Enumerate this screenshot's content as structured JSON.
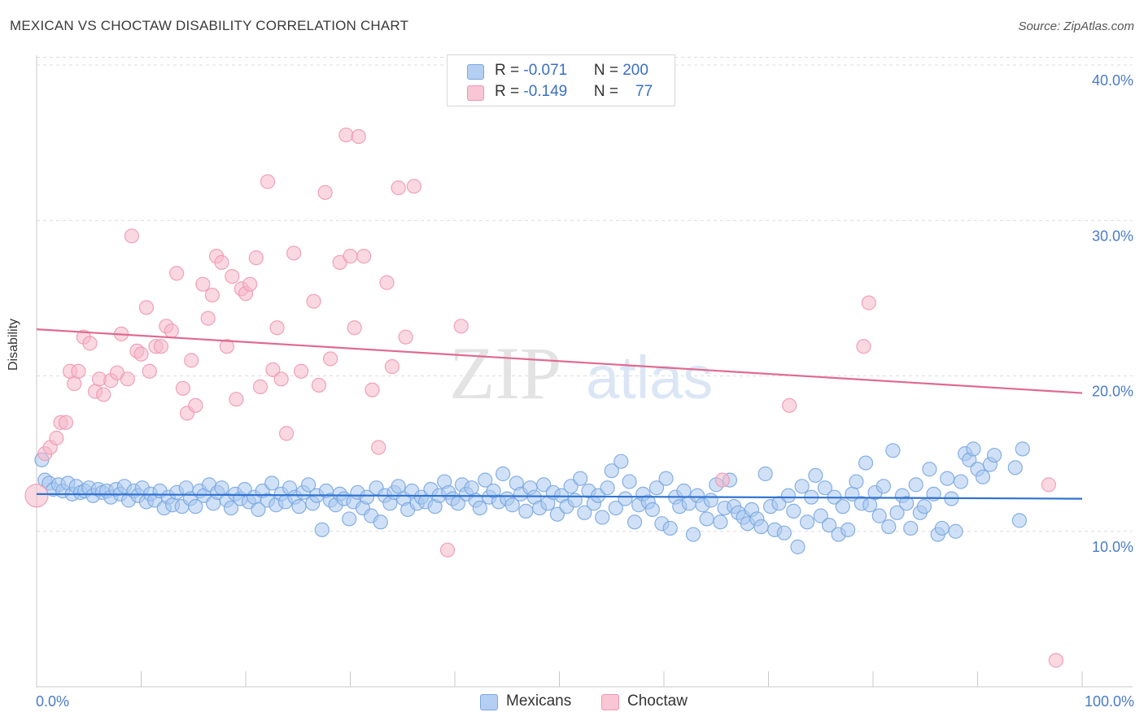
{
  "title": "MEXICAN VS CHOCTAW DISABILITY CORRELATION CHART",
  "source": "Source: ZipAtlas.com",
  "watermark": {
    "zip": "ZIP",
    "atlas": "atlas"
  },
  "colors": {
    "mexicans_fill": "#a9c8f0",
    "mexicans_stroke": "#7aa7e0",
    "mexicans_line": "#2f72d2",
    "choctaw_fill": "#f6b8cb",
    "choctaw_stroke": "#ee98b2",
    "choctaw_line": "#e0698f",
    "axis_label": "#4a7bc8"
  },
  "legend": {
    "mexicans": {
      "r_label": "R = ",
      "r_value": "-0.071",
      "n_label": "N = ",
      "n_value": "200"
    },
    "choctaw": {
      "r_label": "R = ",
      "r_value": "-0.149",
      "n_label": "N = ",
      "n_value": "77"
    }
  },
  "chart_data": {
    "type": "scatter",
    "title": "MEXICAN VS CHOCTAW DISABILITY CORRELATION CHART",
    "xlabel": "",
    "ylabel": "Disability",
    "xlim": [
      0,
      100
    ],
    "ylim": [
      0,
      40
    ],
    "x_tick_labels": [
      "0.0%",
      "100.0%"
    ],
    "y_ticks": [
      10,
      20,
      30,
      40
    ],
    "y_tick_labels": [
      "10.0%",
      "20.0%",
      "30.0%",
      "40.0%"
    ],
    "grid": true,
    "legend_position": "top-center",
    "series": [
      {
        "name": "Mexicans",
        "r": -0.071,
        "n": 200,
        "trend": [
          [
            0,
            12.4
          ],
          [
            100,
            12.1
          ]
        ],
        "points": [
          [
            0.5,
            14.6
          ],
          [
            0.8,
            13.3
          ],
          [
            1.2,
            13.1
          ],
          [
            1.6,
            12.7
          ],
          [
            2.1,
            13.0
          ],
          [
            2.5,
            12.6
          ],
          [
            3.0,
            13.1
          ],
          [
            3.4,
            12.4
          ],
          [
            3.8,
            12.9
          ],
          [
            4.2,
            12.5
          ],
          [
            4.6,
            12.6
          ],
          [
            5.0,
            12.8
          ],
          [
            5.4,
            12.3
          ],
          [
            5.9,
            12.7
          ],
          [
            6.3,
            12.5
          ],
          [
            6.7,
            12.6
          ],
          [
            7.1,
            12.2
          ],
          [
            7.6,
            12.7
          ],
          [
            8.0,
            12.4
          ],
          [
            8.4,
            12.9
          ],
          [
            8.8,
            12.0
          ],
          [
            9.3,
            12.6
          ],
          [
            9.7,
            12.3
          ],
          [
            10.1,
            12.8
          ],
          [
            10.5,
            11.9
          ],
          [
            10.9,
            12.4
          ],
          [
            11.3,
            12.0
          ],
          [
            11.8,
            12.6
          ],
          [
            12.2,
            11.5
          ],
          [
            12.6,
            12.2
          ],
          [
            13.0,
            11.7
          ],
          [
            13.4,
            12.5
          ],
          [
            13.9,
            11.6
          ],
          [
            14.3,
            12.8
          ],
          [
            14.7,
            12.1
          ],
          [
            15.2,
            11.6
          ],
          [
            15.6,
            12.6
          ],
          [
            16.0,
            12.3
          ],
          [
            16.5,
            13.0
          ],
          [
            16.9,
            11.8
          ],
          [
            17.3,
            12.5
          ],
          [
            17.7,
            12.8
          ],
          [
            18.2,
            12.0
          ],
          [
            18.6,
            11.5
          ],
          [
            19.0,
            12.4
          ],
          [
            19.5,
            12.1
          ],
          [
            19.9,
            12.7
          ],
          [
            20.3,
            11.9
          ],
          [
            20.8,
            12.2
          ],
          [
            21.2,
            11.4
          ],
          [
            21.6,
            12.6
          ],
          [
            22.1,
            12.0
          ],
          [
            22.5,
            13.1
          ],
          [
            22.9,
            11.7
          ],
          [
            23.4,
            12.4
          ],
          [
            23.8,
            11.9
          ],
          [
            24.2,
            12.8
          ],
          [
            24.7,
            12.2
          ],
          [
            25.1,
            11.6
          ],
          [
            25.5,
            12.5
          ],
          [
            26.0,
            13.0
          ],
          [
            26.4,
            11.8
          ],
          [
            26.8,
            12.3
          ],
          [
            27.3,
            10.1
          ],
          [
            27.7,
            12.6
          ],
          [
            28.1,
            12.0
          ],
          [
            28.6,
            11.7
          ],
          [
            29.0,
            12.4
          ],
          [
            29.4,
            12.1
          ],
          [
            29.9,
            10.8
          ],
          [
            30.3,
            11.9
          ],
          [
            30.7,
            12.5
          ],
          [
            31.2,
            11.5
          ],
          [
            31.6,
            12.2
          ],
          [
            32.0,
            11.0
          ],
          [
            32.5,
            12.8
          ],
          [
            32.9,
            10.6
          ],
          [
            33.3,
            12.3
          ],
          [
            33.8,
            11.8
          ],
          [
            34.2,
            12.5
          ],
          [
            34.6,
            12.9
          ],
          [
            35.1,
            12.1
          ],
          [
            35.5,
            11.4
          ],
          [
            35.9,
            12.6
          ],
          [
            36.4,
            11.8
          ],
          [
            36.8,
            12.2
          ],
          [
            37.2,
            11.9
          ],
          [
            37.7,
            12.7
          ],
          [
            38.1,
            11.6
          ],
          [
            38.5,
            12.3
          ],
          [
            39.0,
            13.2
          ],
          [
            39.4,
            12.5
          ],
          [
            39.8,
            12.1
          ],
          [
            40.3,
            11.8
          ],
          [
            40.7,
            13.0
          ],
          [
            41.1,
            12.4
          ],
          [
            41.6,
            12.8
          ],
          [
            42.0,
            12.0
          ],
          [
            42.4,
            11.5
          ],
          [
            42.9,
            13.3
          ],
          [
            43.3,
            12.2
          ],
          [
            43.7,
            12.6
          ],
          [
            44.2,
            11.9
          ],
          [
            44.6,
            13.7
          ],
          [
            45.0,
            12.1
          ],
          [
            45.5,
            11.7
          ],
          [
            45.9,
            13.1
          ],
          [
            46.3,
            12.4
          ],
          [
            46.8,
            11.3
          ],
          [
            47.2,
            12.8
          ],
          [
            47.6,
            12.2
          ],
          [
            48.1,
            11.5
          ],
          [
            48.5,
            13.0
          ],
          [
            48.9,
            11.8
          ],
          [
            49.4,
            12.5
          ],
          [
            49.8,
            11.1
          ],
          [
            50.2,
            12.3
          ],
          [
            50.7,
            11.6
          ],
          [
            51.1,
            12.9
          ],
          [
            51.5,
            12.0
          ],
          [
            52.0,
            13.4
          ],
          [
            52.4,
            11.2
          ],
          [
            52.8,
            12.6
          ],
          [
            53.3,
            11.8
          ],
          [
            53.7,
            12.3
          ],
          [
            54.1,
            10.9
          ],
          [
            54.6,
            12.8
          ],
          [
            55.0,
            13.9
          ],
          [
            55.4,
            11.5
          ],
          [
            55.9,
            14.5
          ],
          [
            56.3,
            12.1
          ],
          [
            56.7,
            13.2
          ],
          [
            57.2,
            10.6
          ],
          [
            57.6,
            11.7
          ],
          [
            58.0,
            12.4
          ],
          [
            58.5,
            11.9
          ],
          [
            58.9,
            11.4
          ],
          [
            59.3,
            12.8
          ],
          [
            59.8,
            10.5
          ],
          [
            60.2,
            13.4
          ],
          [
            60.6,
            10.2
          ],
          [
            61.1,
            12.2
          ],
          [
            61.5,
            11.6
          ],
          [
            61.9,
            12.6
          ],
          [
            62.4,
            11.8
          ],
          [
            62.8,
            9.8
          ],
          [
            63.2,
            12.3
          ],
          [
            63.7,
            11.7
          ],
          [
            64.1,
            10.8
          ],
          [
            64.5,
            12.0
          ],
          [
            65.0,
            13.0
          ],
          [
            65.4,
            10.6
          ],
          [
            65.8,
            11.5
          ],
          [
            66.3,
            13.3
          ],
          [
            66.7,
            11.6
          ],
          [
            67.1,
            11.2
          ],
          [
            67.6,
            10.9
          ],
          [
            68.0,
            10.5
          ],
          [
            68.4,
            11.4
          ],
          [
            68.9,
            10.8
          ],
          [
            69.3,
            10.3
          ],
          [
            69.7,
            13.7
          ],
          [
            70.2,
            11.6
          ],
          [
            70.6,
            10.1
          ],
          [
            71.0,
            11.8
          ],
          [
            71.5,
            9.9
          ],
          [
            71.9,
            12.3
          ],
          [
            72.4,
            11.3
          ],
          [
            72.8,
            9.0
          ],
          [
            73.2,
            12.9
          ],
          [
            73.7,
            10.6
          ],
          [
            74.1,
            12.2
          ],
          [
            74.5,
            13.6
          ],
          [
            75.0,
            11.0
          ],
          [
            75.4,
            12.8
          ],
          [
            75.8,
            10.4
          ],
          [
            76.3,
            12.2
          ],
          [
            76.7,
            9.8
          ],
          [
            77.1,
            11.6
          ],
          [
            77.6,
            10.1
          ],
          [
            78.0,
            12.4
          ],
          [
            78.4,
            13.2
          ],
          [
            78.9,
            11.8
          ],
          [
            79.3,
            14.4
          ],
          [
            79.7,
            11.7
          ],
          [
            80.2,
            12.5
          ],
          [
            80.6,
            11.0
          ],
          [
            81.0,
            12.9
          ],
          [
            81.5,
            10.3
          ],
          [
            81.9,
            15.2
          ],
          [
            82.3,
            11.2
          ],
          [
            82.8,
            12.3
          ],
          [
            83.2,
            11.8
          ],
          [
            83.6,
            10.2
          ],
          [
            84.1,
            13.0
          ],
          [
            84.5,
            11.2
          ],
          [
            84.9,
            11.6
          ],
          [
            85.4,
            14.0
          ],
          [
            85.8,
            12.4
          ],
          [
            86.2,
            9.8
          ],
          [
            86.6,
            10.2
          ],
          [
            87.1,
            13.4
          ],
          [
            87.5,
            12.1
          ],
          [
            87.9,
            10.0
          ],
          [
            88.4,
            13.2
          ],
          [
            88.8,
            15.0
          ],
          [
            89.2,
            14.6
          ],
          [
            89.6,
            15.3
          ],
          [
            90.0,
            14.0
          ],
          [
            90.5,
            13.5
          ],
          [
            91.2,
            14.3
          ],
          [
            91.6,
            14.9
          ],
          [
            93.6,
            14.1
          ],
          [
            94.0,
            10.7
          ],
          [
            94.3,
            15.3
          ]
        ]
      },
      {
        "name": "Choctaw",
        "r": -0.149,
        "n": 77,
        "trend": [
          [
            0,
            23.0
          ],
          [
            100,
            18.9
          ]
        ],
        "points": [
          [
            0.0,
            12.3
          ],
          [
            0.8,
            15.0
          ],
          [
            1.3,
            15.4
          ],
          [
            1.9,
            16.0
          ],
          [
            2.3,
            17.0
          ],
          [
            2.8,
            17.0
          ],
          [
            3.2,
            20.3
          ],
          [
            3.6,
            19.5
          ],
          [
            4.0,
            20.3
          ],
          [
            4.5,
            22.5
          ],
          [
            5.1,
            22.1
          ],
          [
            5.6,
            19.0
          ],
          [
            6.0,
            19.8
          ],
          [
            6.4,
            18.8
          ],
          [
            7.1,
            19.7
          ],
          [
            7.7,
            20.2
          ],
          [
            8.1,
            22.7
          ],
          [
            8.7,
            19.8
          ],
          [
            9.1,
            29.0
          ],
          [
            9.6,
            21.6
          ],
          [
            10.0,
            21.4
          ],
          [
            10.5,
            24.4
          ],
          [
            10.8,
            20.3
          ],
          [
            11.4,
            21.9
          ],
          [
            11.9,
            21.9
          ],
          [
            12.4,
            23.2
          ],
          [
            12.9,
            22.9
          ],
          [
            13.4,
            26.6
          ],
          [
            14.0,
            19.2
          ],
          [
            14.4,
            17.6
          ],
          [
            14.8,
            21.0
          ],
          [
            15.2,
            18.1
          ],
          [
            15.9,
            25.9
          ],
          [
            16.4,
            23.7
          ],
          [
            16.8,
            25.2
          ],
          [
            17.2,
            27.7
          ],
          [
            17.7,
            27.3
          ],
          [
            18.2,
            21.9
          ],
          [
            18.7,
            26.4
          ],
          [
            19.1,
            18.5
          ],
          [
            19.6,
            25.6
          ],
          [
            20.0,
            25.3
          ],
          [
            20.4,
            25.9
          ],
          [
            21.0,
            27.6
          ],
          [
            21.4,
            19.3
          ],
          [
            22.1,
            32.5
          ],
          [
            22.6,
            20.4
          ],
          [
            23.0,
            23.1
          ],
          [
            23.4,
            19.8
          ],
          [
            23.9,
            16.3
          ],
          [
            24.6,
            27.9
          ],
          [
            25.3,
            20.3
          ],
          [
            26.5,
            24.8
          ],
          [
            27.0,
            19.4
          ],
          [
            27.6,
            31.8
          ],
          [
            28.1,
            21.1
          ],
          [
            29.0,
            27.3
          ],
          [
            29.6,
            35.5
          ],
          [
            30.0,
            27.7
          ],
          [
            30.4,
            23.1
          ],
          [
            30.8,
            35.4
          ],
          [
            31.3,
            27.7
          ],
          [
            32.1,
            19.1
          ],
          [
            32.7,
            15.4
          ],
          [
            33.5,
            26.0
          ],
          [
            34.0,
            20.6
          ],
          [
            34.6,
            32.1
          ],
          [
            35.3,
            22.5
          ],
          [
            36.1,
            32.2
          ],
          [
            39.3,
            8.8
          ],
          [
            40.6,
            23.2
          ],
          [
            65.6,
            13.3
          ],
          [
            72.0,
            18.1
          ],
          [
            79.1,
            21.9
          ],
          [
            79.6,
            24.7
          ],
          [
            96.8,
            13.0
          ],
          [
            97.5,
            1.7
          ]
        ]
      }
    ]
  }
}
